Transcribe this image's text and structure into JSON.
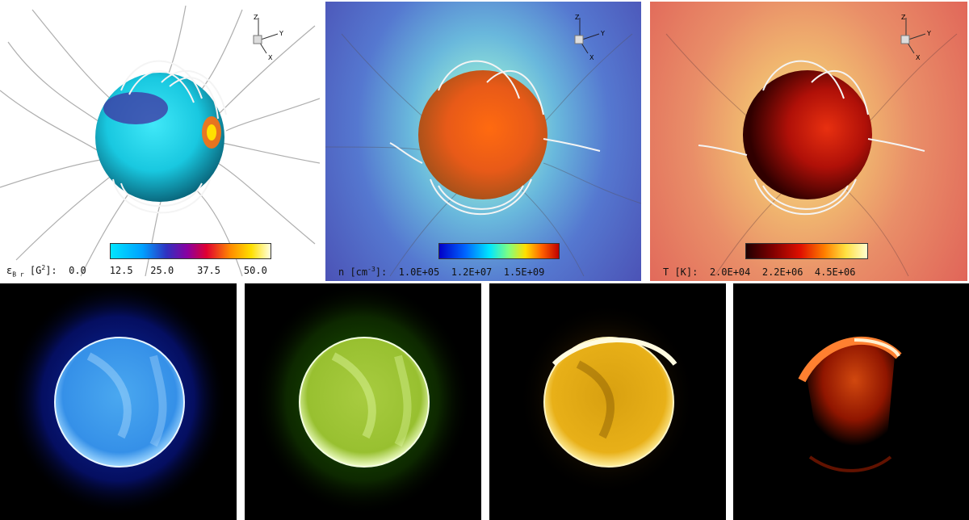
{
  "panels": {
    "magnetic": {
      "label": "ε",
      "label_sub": "B r",
      "label_unit": "[G",
      "label_sup": "2",
      "label_end": "]:",
      "ticks": [
        "0.0",
        "12.5",
        "25.0",
        "37.5",
        "50.0"
      ]
    },
    "density": {
      "label": "n [cm",
      "label_sup": "-3",
      "label_end": "]:",
      "ticks": [
        "1.0E+05",
        "1.2E+07",
        "1.5E+09"
      ]
    },
    "temperature": {
      "label": "T [K]:",
      "ticks": [
        "2.0E+04",
        "2.2E+06",
        "4.5E+06"
      ]
    }
  },
  "axes_triad": {
    "z": "Z",
    "y": "Y",
    "x": "X"
  },
  "synthetic_images": [
    {
      "color": "#3aa8ff",
      "glow": "#1040d0"
    },
    {
      "color": "#b8e050",
      "glow": "#2a8000"
    },
    {
      "color": "#ffcf30",
      "glow": "#c08000"
    },
    {
      "color": "#ff6a10",
      "glow": "#800000"
    }
  ]
}
